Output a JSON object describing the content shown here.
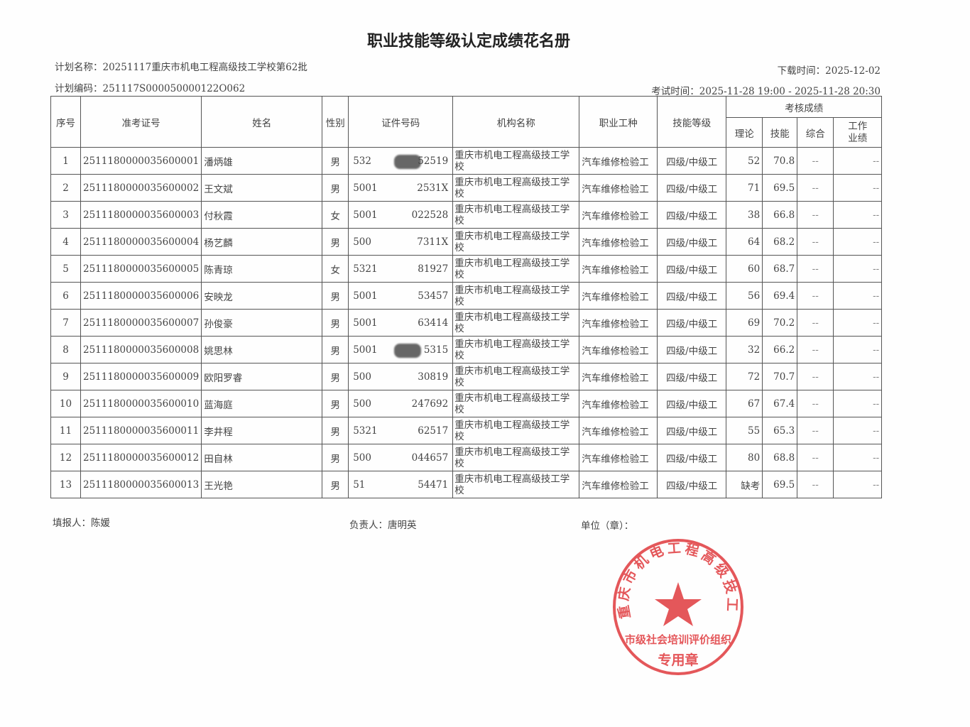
{
  "title": "职业技能等级认定成绩花名册",
  "plan_name_label": "计划名称：",
  "plan_name": "20251117重庆市机电工程高级技工学校第62批",
  "plan_code_label": "计划编码：",
  "plan_code": "251117S000050000122O062",
  "download_label": "下载时间：",
  "download_time": "2025-12-02",
  "exam_time_label": "考试时间：",
  "exam_time": "2025-11-28 19:00 - 2025-11-28 20:30",
  "headers": {
    "seq": "序号",
    "ticket": "准考证号",
    "name": "姓名",
    "gender": "性别",
    "id": "证件号码",
    "org": "机构名称",
    "trade": "职业工种",
    "level": "技能等级",
    "scores": "考核成绩",
    "theory": "理论",
    "skill": "技能",
    "overall": "综合",
    "work": "工作业绩"
  },
  "rows": [
    {
      "seq": "1",
      "ticket": "2511180000035600001",
      "name": "潘炳雄",
      "gender": "男",
      "id_prefix": "532",
      "id_suffix": "52519",
      "masked": true,
      "org": "重庆市机电工程高级技工学校",
      "trade": "汽车维修检验工",
      "level": "四级/中级工",
      "theory": "52",
      "skill": "70.8",
      "overall": "--",
      "work": "--"
    },
    {
      "seq": "2",
      "ticket": "2511180000035600002",
      "name": "王文斌",
      "gender": "男",
      "id_prefix": "5001",
      "id_suffix": "2531X",
      "masked": false,
      "org": "重庆市机电工程高级技工学校",
      "trade": "汽车维修检验工",
      "level": "四级/中级工",
      "theory": "71",
      "skill": "69.5",
      "overall": "--",
      "work": "--"
    },
    {
      "seq": "3",
      "ticket": "2511180000035600003",
      "name": "付秋霞",
      "gender": "女",
      "id_prefix": "5001",
      "id_suffix": "022528",
      "masked": false,
      "org": "重庆市机电工程高级技工学校",
      "trade": "汽车维修检验工",
      "level": "四级/中级工",
      "theory": "38",
      "skill": "66.8",
      "overall": "--",
      "work": "--"
    },
    {
      "seq": "4",
      "ticket": "2511180000035600004",
      "name": "杨艺麟",
      "gender": "男",
      "id_prefix": "500",
      "id_suffix": "7311X",
      "masked": false,
      "org": "重庆市机电工程高级技工学校",
      "trade": "汽车维修检验工",
      "level": "四级/中级工",
      "theory": "64",
      "skill": "68.2",
      "overall": "--",
      "work": "--"
    },
    {
      "seq": "5",
      "ticket": "2511180000035600005",
      "name": "陈青琼",
      "gender": "女",
      "id_prefix": "5321",
      "id_suffix": "81927",
      "masked": false,
      "org": "重庆市机电工程高级技工学校",
      "trade": "汽车维修检验工",
      "level": "四级/中级工",
      "theory": "60",
      "skill": "68.7",
      "overall": "--",
      "work": "--"
    },
    {
      "seq": "6",
      "ticket": "2511180000035600006",
      "name": "安映龙",
      "gender": "男",
      "id_prefix": "5001",
      "id_suffix": "53457",
      "masked": false,
      "org": "重庆市机电工程高级技工学校",
      "trade": "汽车维修检验工",
      "level": "四级/中级工",
      "theory": "56",
      "skill": "69.4",
      "overall": "--",
      "work": "--"
    },
    {
      "seq": "7",
      "ticket": "2511180000035600007",
      "name": "孙俊豪",
      "gender": "男",
      "id_prefix": "5001",
      "id_suffix": "63414",
      "masked": false,
      "org": "重庆市机电工程高级技工学校",
      "trade": "汽车维修检验工",
      "level": "四级/中级工",
      "theory": "69",
      "skill": "70.2",
      "overall": "--",
      "work": "--"
    },
    {
      "seq": "8",
      "ticket": "2511180000035600008",
      "name": "姚思林",
      "gender": "男",
      "id_prefix": "5001",
      "id_suffix": "5315",
      "masked": true,
      "org": "重庆市机电工程高级技工学校",
      "trade": "汽车维修检验工",
      "level": "四级/中级工",
      "theory": "32",
      "skill": "66.2",
      "overall": "--",
      "work": "--"
    },
    {
      "seq": "9",
      "ticket": "2511180000035600009",
      "name": "欧阳罗睿",
      "gender": "男",
      "id_prefix": "500",
      "id_suffix": "30819",
      "masked": false,
      "org": "重庆市机电工程高级技工学校",
      "trade": "汽车维修检验工",
      "level": "四级/中级工",
      "theory": "72",
      "skill": "70.7",
      "overall": "--",
      "work": "--"
    },
    {
      "seq": "10",
      "ticket": "2511180000035600010",
      "name": "蓝海庭",
      "gender": "男",
      "id_prefix": "500",
      "id_suffix": "247692",
      "masked": false,
      "org": "重庆市机电工程高级技工学校",
      "trade": "汽车维修检验工",
      "level": "四级/中级工",
      "theory": "67",
      "skill": "67.4",
      "overall": "--",
      "work": "--"
    },
    {
      "seq": "11",
      "ticket": "2511180000035600011",
      "name": "李井程",
      "gender": "男",
      "id_prefix": "5321",
      "id_suffix": "62517",
      "masked": false,
      "org": "重庆市机电工程高级技工学校",
      "trade": "汽车维修检验工",
      "level": "四级/中级工",
      "theory": "55",
      "skill": "65.3",
      "overall": "--",
      "work": "--"
    },
    {
      "seq": "12",
      "ticket": "2511180000035600012",
      "name": "田自林",
      "gender": "男",
      "id_prefix": "500",
      "id_suffix": "044657",
      "masked": false,
      "org": "重庆市机电工程高级技工学校",
      "trade": "汽车维修检验工",
      "level": "四级/中级工",
      "theory": "80",
      "skill": "68.8",
      "overall": "--",
      "work": "--"
    },
    {
      "seq": "13",
      "ticket": "2511180000035600013",
      "name": "王光艳",
      "gender": "男",
      "id_prefix": "51",
      "id_suffix": "54471",
      "masked": false,
      "org": "重庆市机电工程高级技工学校",
      "trade": "汽车维修检验工",
      "level": "四级/中级工",
      "theory": "缺考",
      "skill": "69.5",
      "overall": "--",
      "work": "--"
    }
  ],
  "footer": {
    "filler_label": "填报人：",
    "filler": "陈媛",
    "leader_label": "负责人：",
    "leader": "唐明英",
    "unit_label": "单位（章）："
  },
  "stamp": {
    "outer_text": "重庆市机电工程高级技工学校",
    "inner_text": "市级社会培训评价组织",
    "bottom_text": "专用章",
    "color": "#e03a3e"
  }
}
